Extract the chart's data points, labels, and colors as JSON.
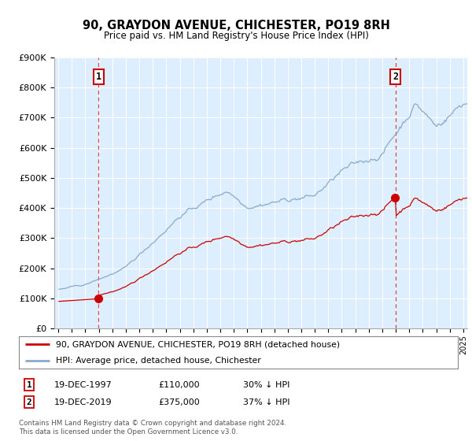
{
  "title": "90, GRAYDON AVENUE, CHICHESTER, PO19 8RH",
  "subtitle": "Price paid vs. HM Land Registry's House Price Index (HPI)",
  "ylim": [
    0,
    900000
  ],
  "yticks": [
    0,
    100000,
    200000,
    300000,
    400000,
    500000,
    600000,
    700000,
    800000,
    900000
  ],
  "ytick_labels": [
    "£0",
    "£100K",
    "£200K",
    "£300K",
    "£400K",
    "£500K",
    "£600K",
    "£700K",
    "£800K",
    "£900K"
  ],
  "xlim_start": 1994.7,
  "xlim_end": 2025.3,
  "purchase1_year": 1997.97,
  "purchase1_price": 110000,
  "purchase2_year": 2019.97,
  "purchase2_price": 375000,
  "red_color": "#cc0000",
  "blue_color": "#88aacc",
  "marker_color": "#cc0000",
  "dashed_line_color": "#dd4444",
  "legend_label_red": "90, GRAYDON AVENUE, CHICHESTER, PO19 8RH (detached house)",
  "legend_label_blue": "HPI: Average price, detached house, Chichester",
  "footer": "Contains HM Land Registry data © Crown copyright and database right 2024.\nThis data is licensed under the Open Government Licence v3.0.",
  "background_color": "#ffffff",
  "plot_bg_color": "#ddeeff",
  "grid_color": "#ffffff"
}
